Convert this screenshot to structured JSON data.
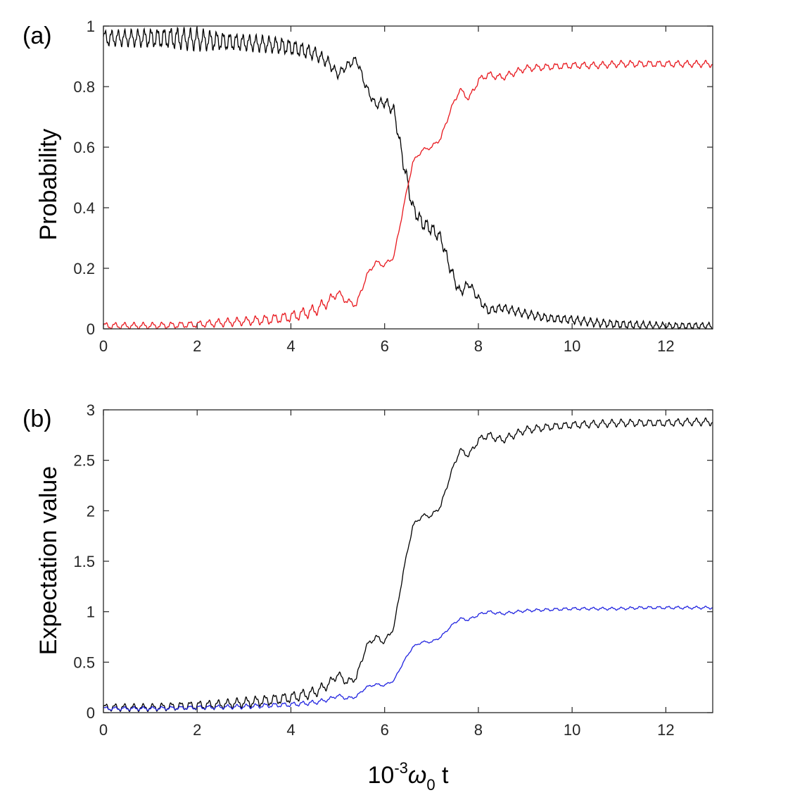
{
  "chart_data": [
    {
      "type": "line",
      "panel_label": "(a)",
      "title": "",
      "xlabel": "",
      "ylabel": "Probability",
      "xlim": [
        0,
        13
      ],
      "ylim": [
        0,
        1
      ],
      "xticks": [
        0,
        2,
        4,
        6,
        8,
        10,
        12
      ],
      "yticks": [
        0,
        0.2,
        0.4,
        0.6,
        0.8,
        1
      ],
      "xtick_labels": [
        "0",
        "2",
        "4",
        "6",
        "8",
        "10",
        "12"
      ],
      "ytick_labels": [
        "0",
        "0.2",
        "0.4",
        "0.6",
        "0.8",
        "1"
      ],
      "grid": false,
      "series": [
        {
          "name": "black",
          "color": "#000000",
          "x": [
            0,
            0.5,
            1,
            1.5,
            2,
            2.5,
            3,
            3.5,
            4,
            4.5,
            4.8,
            5,
            5.2,
            5.4,
            5.6,
            5.8,
            6,
            6.2,
            6.4,
            6.6,
            6.8,
            7,
            7.2,
            7.4,
            7.6,
            7.8,
            8,
            8.2,
            8.5,
            9,
            9.5,
            10,
            10.5,
            11,
            11.5,
            12,
            12.5,
            13
          ],
          "y": [
            0.96,
            0.96,
            0.96,
            0.96,
            0.955,
            0.95,
            0.945,
            0.94,
            0.93,
            0.91,
            0.88,
            0.84,
            0.87,
            0.89,
            0.8,
            0.74,
            0.75,
            0.72,
            0.55,
            0.4,
            0.35,
            0.33,
            0.3,
            0.2,
            0.12,
            0.15,
            0.1,
            0.06,
            0.07,
            0.05,
            0.035,
            0.03,
            0.02,
            0.015,
            0.012,
            0.01,
            0.01,
            0.01
          ],
          "oscillation": {
            "amplitude": [
              0.03,
              0.03,
              0.035,
              0.04,
              0.04,
              0.035,
              0.03,
              0.03,
              0.03,
              0.025,
              0.02,
              0.015,
              0.015,
              0.015,
              0.015,
              0.015,
              0.02,
              0.02,
              0.025,
              0.025,
              0.025,
              0.025,
              0.02,
              0.02,
              0.02,
              0.015,
              0.015,
              0.015,
              0.015,
              0.015,
              0.015,
              0.015,
              0.015,
              0.015,
              0.015,
              0.012,
              0.012,
              0.012
            ],
            "period": 0.14
          }
        },
        {
          "name": "red",
          "color": "#e8171d",
          "x": [
            0,
            0.5,
            1,
            1.5,
            2,
            2.5,
            3,
            3.5,
            4,
            4.5,
            4.8,
            5,
            5.2,
            5.4,
            5.6,
            5.8,
            6,
            6.2,
            6.4,
            6.6,
            6.8,
            7,
            7.2,
            7.4,
            7.6,
            7.8,
            8,
            8.2,
            8.5,
            9,
            9.5,
            10,
            10.5,
            11,
            11.5,
            12,
            12.5,
            13
          ],
          "y": [
            0.01,
            0.01,
            0.01,
            0.012,
            0.015,
            0.02,
            0.025,
            0.03,
            0.04,
            0.06,
            0.09,
            0.12,
            0.09,
            0.08,
            0.17,
            0.22,
            0.21,
            0.24,
            0.4,
            0.55,
            0.59,
            0.6,
            0.63,
            0.72,
            0.79,
            0.76,
            0.82,
            0.84,
            0.83,
            0.86,
            0.865,
            0.87,
            0.87,
            0.875,
            0.875,
            0.875,
            0.875,
            0.875
          ],
          "oscillation": {
            "amplitude": [
              0.012,
              0.012,
              0.012,
              0.012,
              0.012,
              0.015,
              0.015,
              0.018,
              0.02,
              0.022,
              0.02,
              0.012,
              0.012,
              0.01,
              0.01,
              0.008,
              0.008,
              0.008,
              0.006,
              0.006,
              0.006,
              0.006,
              0.008,
              0.008,
              0.01,
              0.01,
              0.012,
              0.012,
              0.012,
              0.012,
              0.012,
              0.012,
              0.012,
              0.012,
              0.012,
              0.012,
              0.012,
              0.012
            ],
            "period": 0.2
          }
        }
      ]
    },
    {
      "type": "line",
      "panel_label": "(b)",
      "title": "",
      "xlabel_main": "10",
      "xlabel_exp": "-3",
      "xlabel_sym": "ω",
      "xlabel_sub": "0",
      "xlabel_tail": " t",
      "ylabel": "Expectation value",
      "xlim": [
        0,
        13
      ],
      "ylim": [
        0,
        3
      ],
      "xticks": [
        0,
        2,
        4,
        6,
        8,
        10,
        12
      ],
      "yticks": [
        0,
        0.5,
        1,
        1.5,
        2,
        2.5,
        3
      ],
      "xtick_labels": [
        "0",
        "2",
        "4",
        "6",
        "8",
        "10",
        "12"
      ],
      "ytick_labels": [
        "0",
        "0.5",
        "1",
        "1.5",
        "2",
        "2.5",
        "3"
      ],
      "grid": false,
      "series": [
        {
          "name": "black",
          "color": "#000000",
          "x": [
            0,
            0.5,
            1,
            1.5,
            2,
            2.5,
            3,
            3.5,
            4,
            4.5,
            4.8,
            5,
            5.2,
            5.4,
            5.6,
            5.8,
            6,
            6.2,
            6.4,
            6.6,
            6.8,
            7,
            7.2,
            7.4,
            7.6,
            7.8,
            8,
            8.2,
            8.5,
            9,
            9.5,
            10,
            10.5,
            11,
            11.5,
            12,
            12.5,
            13
          ],
          "y": [
            0.05,
            0.05,
            0.05,
            0.06,
            0.07,
            0.08,
            0.1,
            0.12,
            0.15,
            0.2,
            0.28,
            0.38,
            0.3,
            0.35,
            0.65,
            0.75,
            0.7,
            0.85,
            1.4,
            1.85,
            1.95,
            1.95,
            2.05,
            2.35,
            2.6,
            2.55,
            2.7,
            2.75,
            2.7,
            2.8,
            2.83,
            2.85,
            2.86,
            2.87,
            2.87,
            2.87,
            2.88,
            2.88
          ],
          "oscillation": {
            "amplitude": [
              0.04,
              0.04,
              0.04,
              0.045,
              0.05,
              0.05,
              0.055,
              0.06,
              0.06,
              0.06,
              0.05,
              0.04,
              0.04,
              0.035,
              0.03,
              0.03,
              0.03,
              0.025,
              0.02,
              0.02,
              0.02,
              0.02,
              0.025,
              0.025,
              0.03,
              0.03,
              0.035,
              0.04,
              0.04,
              0.04,
              0.04,
              0.04,
              0.04,
              0.04,
              0.04,
              0.04,
              0.04,
              0.04
            ],
            "period": 0.2
          }
        },
        {
          "name": "blue",
          "color": "#1f22e0",
          "x": [
            0,
            0.5,
            1,
            1.5,
            2,
            2.5,
            3,
            3.5,
            4,
            4.5,
            4.8,
            5,
            5.2,
            5.4,
            5.6,
            5.8,
            6,
            6.2,
            6.4,
            6.6,
            6.8,
            7,
            7.2,
            7.4,
            7.6,
            7.8,
            8,
            8.2,
            8.5,
            9,
            9.5,
            10,
            10.5,
            11,
            11.5,
            12,
            12.5,
            13
          ],
          "y": [
            0.04,
            0.04,
            0.04,
            0.045,
            0.05,
            0.055,
            0.06,
            0.07,
            0.08,
            0.1,
            0.13,
            0.17,
            0.14,
            0.16,
            0.25,
            0.28,
            0.27,
            0.32,
            0.5,
            0.65,
            0.7,
            0.7,
            0.75,
            0.85,
            0.93,
            0.92,
            0.97,
            1.0,
            0.98,
            1.01,
            1.02,
            1.03,
            1.03,
            1.03,
            1.04,
            1.04,
            1.04,
            1.04
          ],
          "oscillation": {
            "amplitude": [
              0.02,
              0.02,
              0.02,
              0.02,
              0.022,
              0.022,
              0.025,
              0.025,
              0.025,
              0.025,
              0.02,
              0.018,
              0.018,
              0.015,
              0.012,
              0.012,
              0.012,
              0.01,
              0.01,
              0.01,
              0.01,
              0.01,
              0.012,
              0.012,
              0.015,
              0.015,
              0.015,
              0.015,
              0.015,
              0.015,
              0.015,
              0.015,
              0.015,
              0.015,
              0.015,
              0.015,
              0.015,
              0.015
            ],
            "period": 0.2
          }
        }
      ]
    }
  ]
}
